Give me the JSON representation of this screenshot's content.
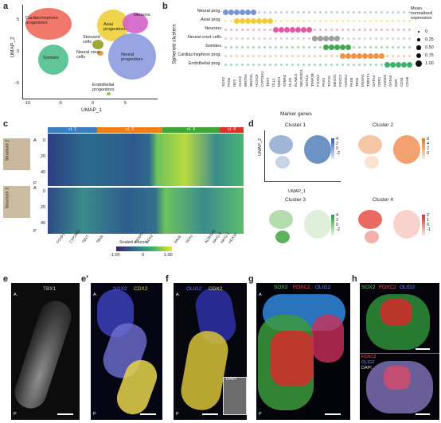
{
  "panels": {
    "a": "a",
    "b": "b",
    "c": "c",
    "d": "d",
    "e": "e",
    "e2": "e'",
    "f": "f",
    "g": "g",
    "h": "h"
  },
  "a": {
    "y_label": "UMAP_2",
    "x_label": "UMAP_1",
    "ticks_x": [
      "-10",
      "-5",
      "0",
      "5"
    ],
    "ticks_y": [
      "5",
      "0",
      "-5"
    ],
    "clusters": [
      "Cardiac/nephron progenitors",
      "Axial progenitors",
      "Neurons",
      "Stressed cells",
      "Neural crest cells",
      "Somites",
      "Neural progenitors",
      "Endothelial progenitors"
    ]
  },
  "b": {
    "y_title": "Spheroid clusters",
    "x_title": "Marker genes",
    "rows": [
      "Neural prog.",
      "Axial prog.",
      "Neurons",
      "Neural crest cells",
      "Somites",
      "Cardiac/nephron prog.",
      "Endothelial prog."
    ],
    "genes": [
      "SOX2",
      "PAX6",
      "NES",
      "OLIG2",
      "WNT5A",
      "WNT3A",
      "HOXC6",
      "CYP26A1",
      "TBXT",
      "DLL1",
      "MNX1",
      "STMN2",
      "DLX5",
      "ELAVL3",
      "NEUROD1",
      "SOX10",
      "TFAP2B",
      "FOXD3",
      "PAX3",
      "TCF15",
      "MEOX1",
      "FOXC2",
      "HAND1",
      "PAX8",
      "TBX6",
      "MSGN1",
      "TWIST1",
      "GATA4",
      "OSR1",
      "HAND2",
      "GATA6",
      "KDR",
      "CD34",
      "CDH5"
    ],
    "legend_title": "Mean normalized expression",
    "legend_values": [
      "0",
      "0.25",
      "0.50",
      "0.75",
      "1.00"
    ],
    "colors": [
      "#6d8fd0",
      "#f0c929",
      "#e0509e",
      "#9a9a9a",
      "#3aa34a",
      "#f28b3c",
      "#2fae64"
    ]
  },
  "c": {
    "clusters": [
      "cl. 1",
      "cl. 2",
      "cl. 3",
      "cl. 4"
    ],
    "cluster_colors": [
      "#3a7fc1",
      "#ef7f1a",
      "#3fa535",
      "#d9342b"
    ],
    "structure_1": "Structure 1",
    "structure_2": "Structure 2",
    "axis_A": "A",
    "axis_P": "P",
    "ticks_y": [
      "0",
      "20",
      "40"
    ],
    "genes_bottom": [
      "FOXF1",
      "CYP26A1",
      "TBXT",
      "TBX6",
      "MESP2",
      "CDX2",
      "PAX6",
      "SOX1",
      "ALDH1A2",
      "NKX2-5",
      "NKX2-2",
      "HOX10"
    ],
    "colorbar_title": "Scaled z-score",
    "colorbar_ticks": [
      "-1.00",
      "0",
      "1.00"
    ]
  },
  "d": {
    "titles": [
      "Cluster 1",
      "Cluster 2",
      "Cluster 3",
      "Cluster 4"
    ],
    "y_label": "UMAP_2",
    "x_label": "UMAP_1",
    "ticks_x": [
      "-10",
      "-5",
      "0",
      "5",
      "10"
    ],
    "ticks_y": [
      "5",
      "0",
      "-5"
    ],
    "cb1": [
      "4",
      "2",
      "0",
      "-2"
    ],
    "cb2": [
      "6",
      "4",
      "2",
      "0"
    ],
    "cb3": [
      "4",
      "2",
      "0",
      "-2"
    ],
    "cb4": [
      "2",
      "1",
      "0",
      "-1"
    ]
  },
  "e": {
    "stain": "TBX1",
    "A": "A",
    "P": "P"
  },
  "e2": {
    "stain_1": "SOX2",
    "stain_2": "CDX2",
    "A": "A",
    "P": "P"
  },
  "f": {
    "stain_1": "OLIG2",
    "stain_2": "CDX2",
    "inset": "DAPI",
    "A": "A",
    "P": "P"
  },
  "g": {
    "stain_1": "SOX2",
    "stain_2": "FOXC2",
    "stain_3": "OLIG2",
    "A": "A",
    "P": "P"
  },
  "h": {
    "stain_1": "SOX2",
    "stain_2": "FOXC2",
    "stain_3": "OLIG2",
    "lower_1": "FOXC2",
    "lower_2": "OLIG2",
    "lower_3": "DAPI"
  }
}
